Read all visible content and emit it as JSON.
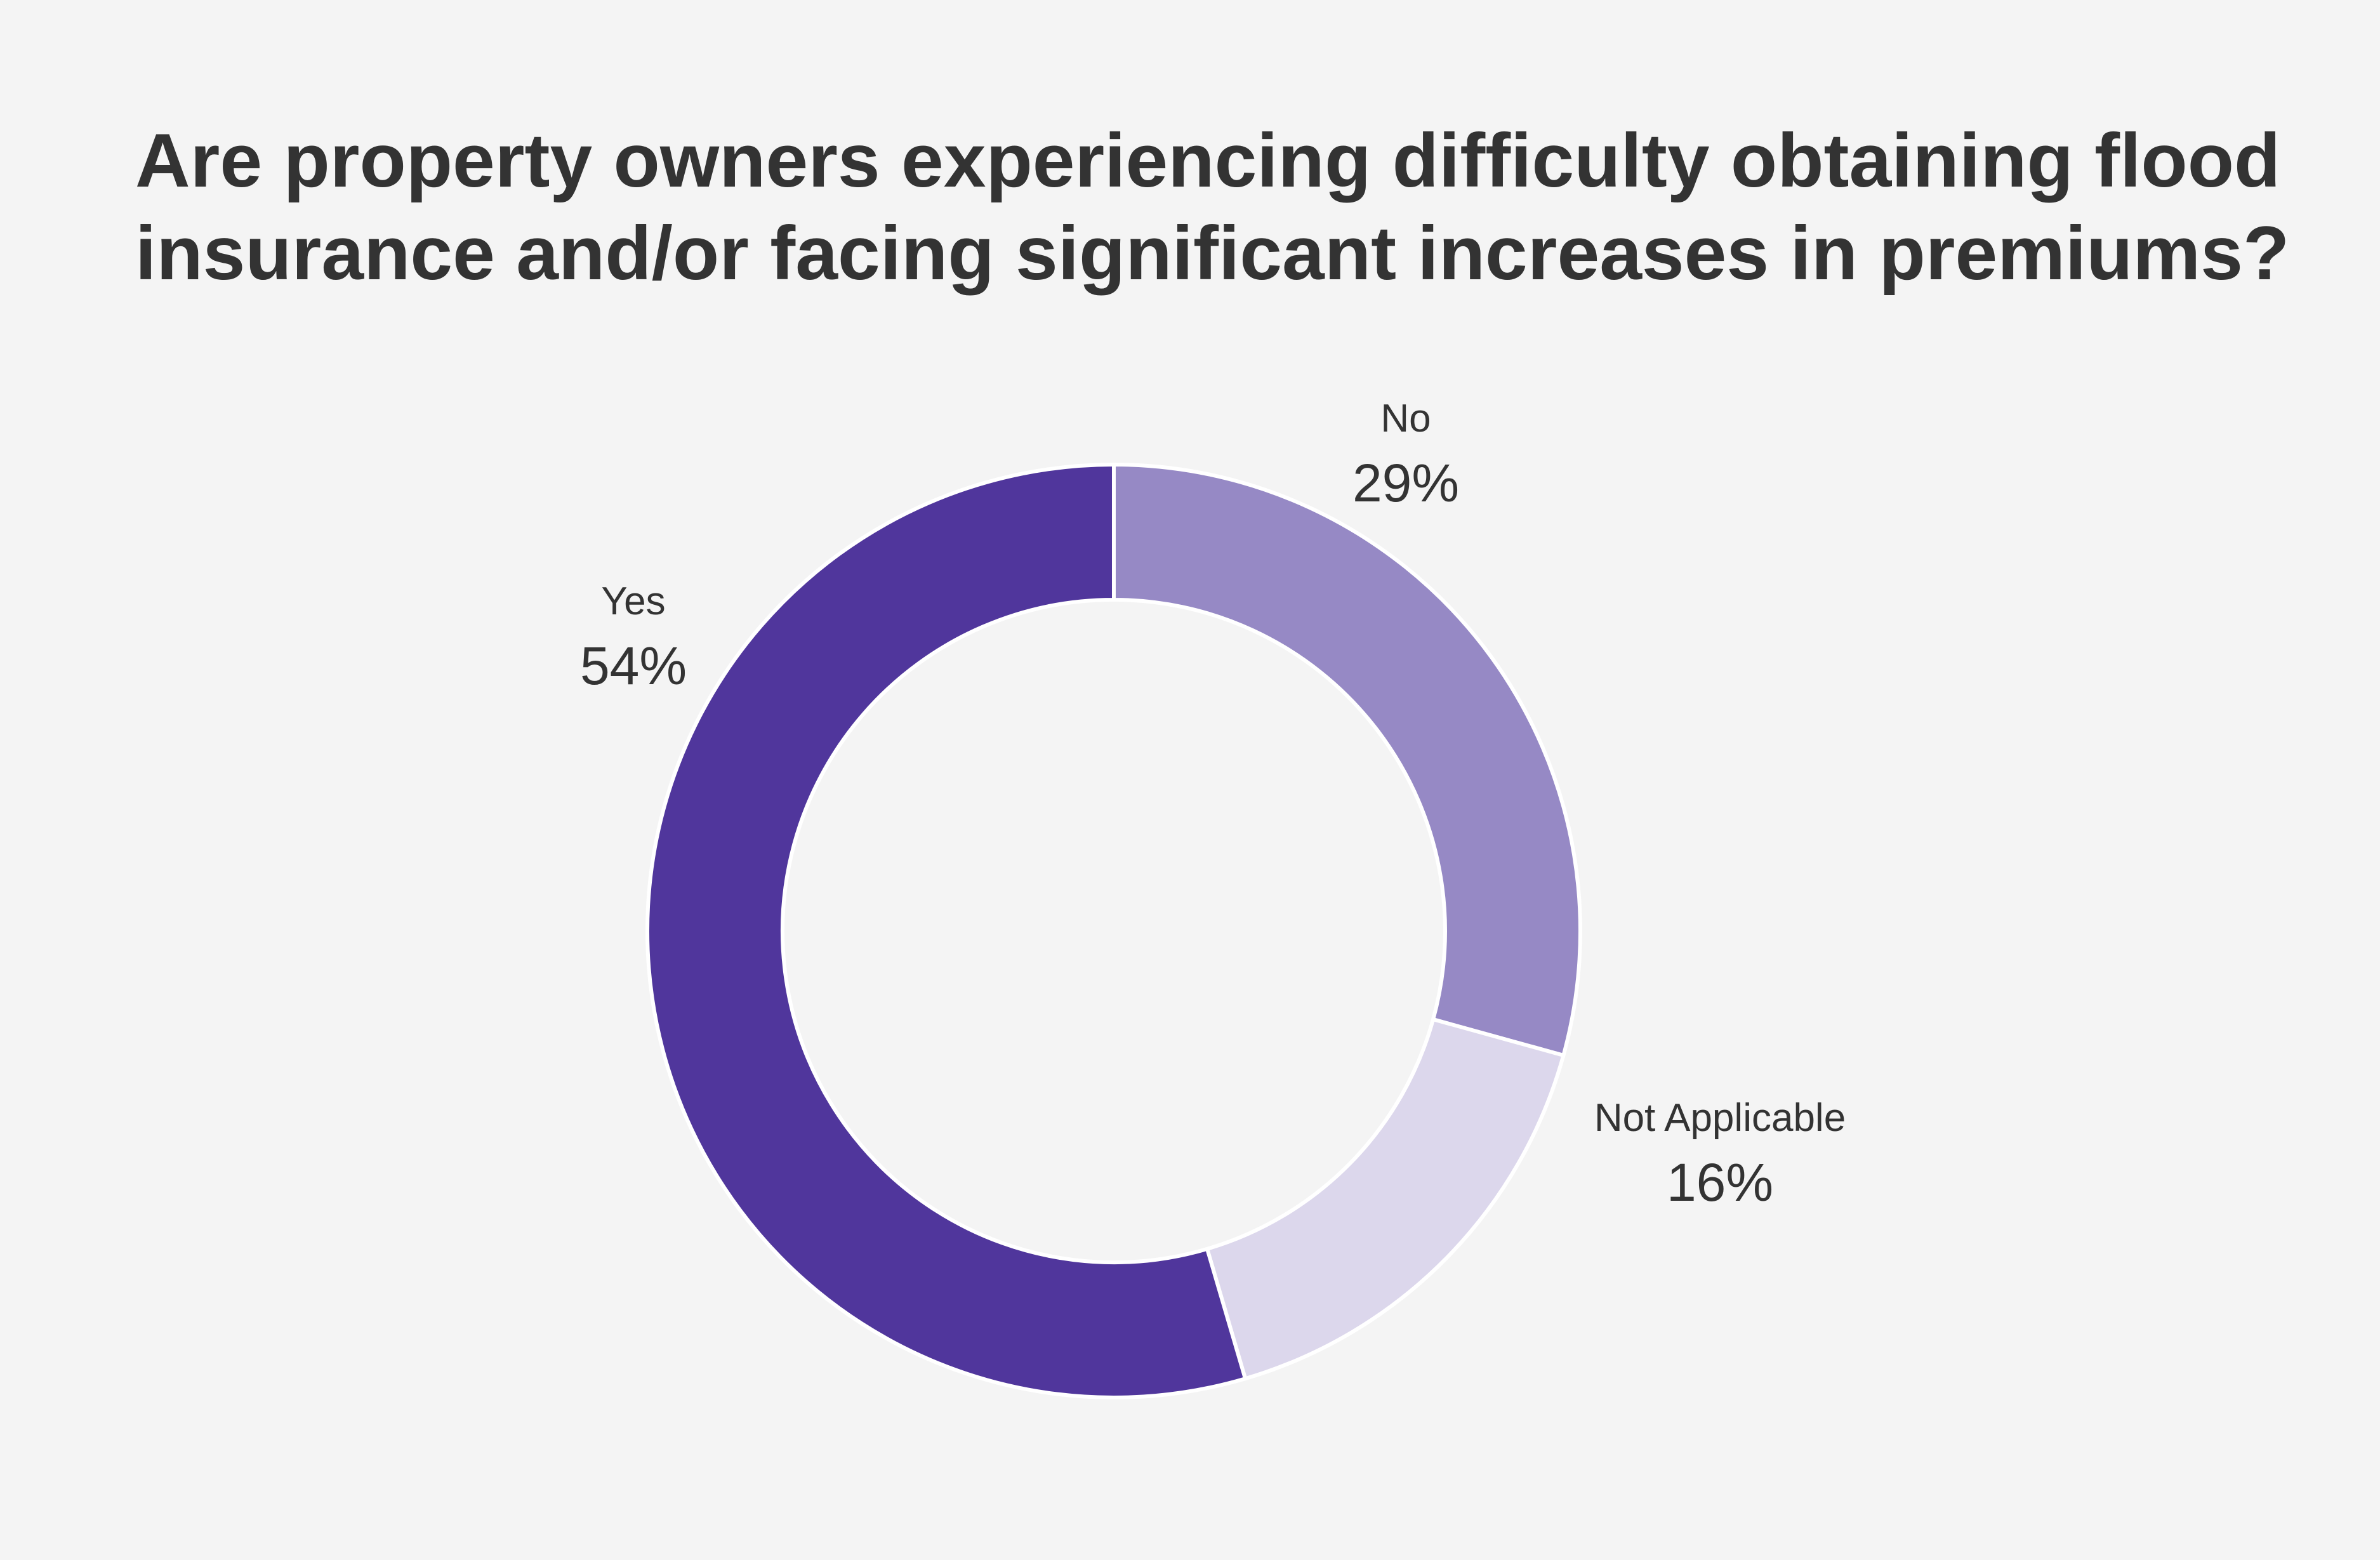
{
  "chart_data": {
    "type": "pie",
    "title": "Are property owners experiencing difficulty  obtaining flood\ninsurance and/or facing significant increases in premiums?",
    "categories": [
      "No",
      "Not Applicable",
      "Yes"
    ],
    "values": [
      29,
      16,
      54
    ],
    "value_labels": [
      "29%",
      "16%",
      "54%"
    ],
    "colors": [
      "#9689c5",
      "#dcd7ec",
      "#50369c"
    ],
    "legend": "none",
    "donut": true
  }
}
